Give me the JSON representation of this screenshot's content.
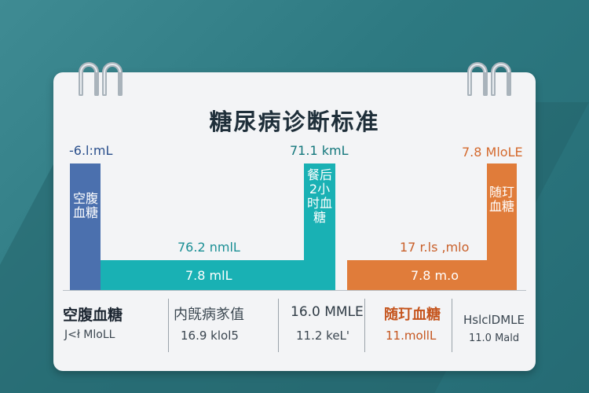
{
  "title": "糖尿病诊断标准",
  "bars": {
    "fasting": {
      "top_label": "-6.l:mL",
      "vertical_label": "空腹血糖"
    },
    "middle": {
      "top_label": "76.2 nmlL",
      "inner_label": "7.8 mlL"
    },
    "postmeal": {
      "top_label": "71.1 kmL",
      "vertical_label": "餐后2小时血糖"
    },
    "random_low": {
      "top_label": "17 r.ls ,mlo",
      "inner_label": "7.8 m.o"
    },
    "random_high": {
      "top_label": "7.8 MloLE",
      "vertical_label": "随玎血糖"
    }
  },
  "columns": [
    {
      "name": "空腹血糖",
      "value": "J<ł MloLL"
    },
    {
      "name": "内旣病㒸值",
      "value": "16.9 klol5"
    },
    {
      "name": "16.0 MMLE",
      "value": "11.2 keL'"
    },
    {
      "name": "随玎血糖",
      "value": "11.mollL"
    },
    {
      "name": "HslclDMLE",
      "value": "11.0 Mald"
    }
  ],
  "colors": {
    "background": "#2f7d85",
    "card": "#f3f4f6",
    "blue": "#4b70ae",
    "teal": "#19b1b4",
    "orange": "#e07c3a",
    "title": "#1f2f3a"
  }
}
